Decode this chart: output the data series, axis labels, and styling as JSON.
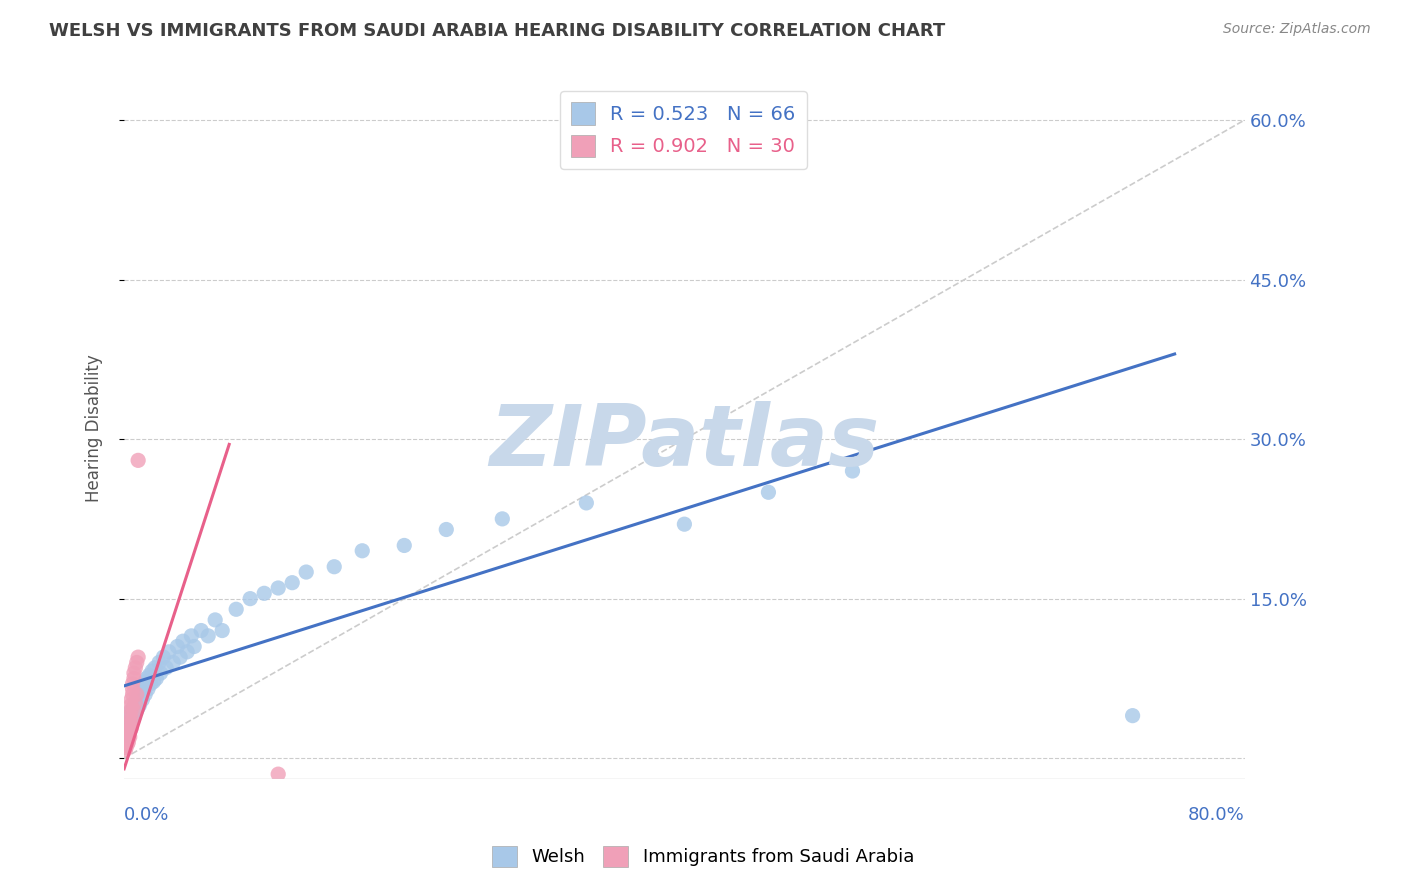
{
  "title": "WELSH VS IMMIGRANTS FROM SAUDI ARABIA HEARING DISABILITY CORRELATION CHART",
  "source": "Source: ZipAtlas.com",
  "ylabel": "Hearing Disability",
  "yticks": [
    0.0,
    0.15,
    0.3,
    0.45,
    0.6
  ],
  "ytick_labels": [
    "",
    "15.0%",
    "30.0%",
    "45.0%",
    "60.0%"
  ],
  "xmin": 0.0,
  "xmax": 0.8,
  "ymin": -0.02,
  "ymax": 0.64,
  "welsh_color": "#A8C8E8",
  "saudi_color": "#F0A0B8",
  "welsh_line_color": "#4472C4",
  "saudi_line_color": "#E8608A",
  "legend_welsh_r": "R = 0.523",
  "legend_welsh_n": "N = 66",
  "legend_saudi_r": "R = 0.902",
  "legend_saudi_n": "N = 30",
  "watermark": "ZIPatlas",
  "watermark_color": "#C8D8EA",
  "background_color": "#FFFFFF",
  "grid_color": "#CCCCCC",
  "axis_label_color": "#4472C4",
  "title_color": "#404040",
  "welsh_scatter": [
    [
      0.001,
      0.025
    ],
    [
      0.002,
      0.03
    ],
    [
      0.002,
      0.022
    ],
    [
      0.003,
      0.028
    ],
    [
      0.003,
      0.035
    ],
    [
      0.004,
      0.04
    ],
    [
      0.004,
      0.032
    ],
    [
      0.005,
      0.038
    ],
    [
      0.005,
      0.045
    ],
    [
      0.006,
      0.042
    ],
    [
      0.006,
      0.035
    ],
    [
      0.007,
      0.048
    ],
    [
      0.007,
      0.038
    ],
    [
      0.008,
      0.052
    ],
    [
      0.008,
      0.044
    ],
    [
      0.009,
      0.055
    ],
    [
      0.009,
      0.045
    ],
    [
      0.01,
      0.058
    ],
    [
      0.01,
      0.048
    ],
    [
      0.011,
      0.062
    ],
    [
      0.011,
      0.05
    ],
    [
      0.012,
      0.065
    ],
    [
      0.013,
      0.055
    ],
    [
      0.014,
      0.068
    ],
    [
      0.015,
      0.072
    ],
    [
      0.015,
      0.06
    ],
    [
      0.016,
      0.075
    ],
    [
      0.017,
      0.065
    ],
    [
      0.018,
      0.078
    ],
    [
      0.019,
      0.07
    ],
    [
      0.02,
      0.082
    ],
    [
      0.021,
      0.072
    ],
    [
      0.022,
      0.085
    ],
    [
      0.023,
      0.075
    ],
    [
      0.025,
      0.09
    ],
    [
      0.026,
      0.08
    ],
    [
      0.028,
      0.095
    ],
    [
      0.03,
      0.085
    ],
    [
      0.032,
      0.1
    ],
    [
      0.035,
      0.09
    ],
    [
      0.038,
      0.105
    ],
    [
      0.04,
      0.095
    ],
    [
      0.042,
      0.11
    ],
    [
      0.045,
      0.1
    ],
    [
      0.048,
      0.115
    ],
    [
      0.05,
      0.105
    ],
    [
      0.055,
      0.12
    ],
    [
      0.06,
      0.115
    ],
    [
      0.065,
      0.13
    ],
    [
      0.07,
      0.12
    ],
    [
      0.08,
      0.14
    ],
    [
      0.09,
      0.15
    ],
    [
      0.1,
      0.155
    ],
    [
      0.11,
      0.16
    ],
    [
      0.12,
      0.165
    ],
    [
      0.13,
      0.175
    ],
    [
      0.15,
      0.18
    ],
    [
      0.17,
      0.195
    ],
    [
      0.2,
      0.2
    ],
    [
      0.23,
      0.215
    ],
    [
      0.27,
      0.225
    ],
    [
      0.33,
      0.24
    ],
    [
      0.4,
      0.22
    ],
    [
      0.46,
      0.25
    ],
    [
      0.52,
      0.27
    ],
    [
      0.72,
      0.04
    ]
  ],
  "saudi_scatter": [
    [
      0.001,
      0.01
    ],
    [
      0.001,
      0.008
    ],
    [
      0.001,
      0.015
    ],
    [
      0.002,
      0.018
    ],
    [
      0.002,
      0.012
    ],
    [
      0.002,
      0.022
    ],
    [
      0.003,
      0.025
    ],
    [
      0.003,
      0.015
    ],
    [
      0.003,
      0.03
    ],
    [
      0.004,
      0.035
    ],
    [
      0.004,
      0.02
    ],
    [
      0.004,
      0.04
    ],
    [
      0.005,
      0.045
    ],
    [
      0.005,
      0.028
    ],
    [
      0.005,
      0.05
    ],
    [
      0.005,
      0.055
    ],
    [
      0.006,
      0.06
    ],
    [
      0.006,
      0.035
    ],
    [
      0.006,
      0.065
    ],
    [
      0.006,
      0.07
    ],
    [
      0.007,
      0.075
    ],
    [
      0.007,
      0.045
    ],
    [
      0.007,
      0.08
    ],
    [
      0.008,
      0.085
    ],
    [
      0.008,
      0.052
    ],
    [
      0.009,
      0.09
    ],
    [
      0.009,
      0.06
    ],
    [
      0.01,
      0.095
    ],
    [
      0.01,
      0.28
    ],
    [
      0.11,
      -0.015
    ]
  ],
  "welsh_trend_x": [
    0.0,
    0.75
  ],
  "welsh_trend_y": [
    0.068,
    0.38
  ],
  "saudi_trend_x": [
    0.0,
    0.075
  ],
  "saudi_trend_y": [
    -0.01,
    0.295
  ],
  "diag_line_x": [
    0.0,
    0.8
  ],
  "diag_line_y": [
    0.0,
    0.6
  ]
}
